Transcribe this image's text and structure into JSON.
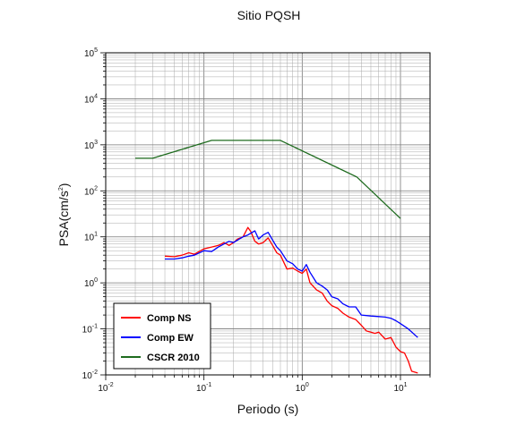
{
  "chart_data": {
    "type": "line",
    "title": "Sitio PQSH",
    "xlabel": "Periodo (s)",
    "ylabel": {
      "base": "PSA(cm/s",
      "sup": "2",
      "tail": ")"
    },
    "xscale": "log",
    "yscale": "log",
    "xlim": [
      0.01,
      20
    ],
    "ylim": [
      0.01,
      100000
    ],
    "grid": true,
    "legend_position": "bottom-left",
    "x_ticks": [
      {
        "base": "10",
        "exp": "-2"
      },
      {
        "base": "10",
        "exp": "-1"
      },
      {
        "base": "10",
        "exp": "0"
      },
      {
        "base": "10",
        "exp": "1"
      }
    ],
    "y_ticks": [
      {
        "base": "10",
        "exp": "-2"
      },
      {
        "base": "10",
        "exp": "-1"
      },
      {
        "base": "10",
        "exp": "0"
      },
      {
        "base": "10",
        "exp": "1"
      },
      {
        "base": "10",
        "exp": "2"
      },
      {
        "base": "10",
        "exp": "3"
      },
      {
        "base": "10",
        "exp": "4"
      },
      {
        "base": "10",
        "exp": "5"
      }
    ],
    "series": [
      {
        "name": "Comp NS",
        "color": "#ff0000",
        "x": [
          0.04,
          0.05,
          0.06,
          0.07,
          0.08,
          0.1,
          0.12,
          0.14,
          0.16,
          0.18,
          0.2,
          0.22,
          0.25,
          0.28,
          0.3,
          0.33,
          0.36,
          0.4,
          0.45,
          0.5,
          0.55,
          0.6,
          0.7,
          0.8,
          0.9,
          1.0,
          1.1,
          1.2,
          1.4,
          1.6,
          1.8,
          2.0,
          2.3,
          2.6,
          3.0,
          3.5,
          4.0,
          4.5,
          5.0,
          5.5,
          6.0,
          7.0,
          8.0,
          9.0,
          10.0,
          11.0,
          12.0,
          13.0,
          15.0
        ],
        "y": [
          3.8,
          3.7,
          4.0,
          4.5,
          4.2,
          5.5,
          6.0,
          6.5,
          7.5,
          6.5,
          7.5,
          9.0,
          10.0,
          16.0,
          13.0,
          8.0,
          7.0,
          7.5,
          9.5,
          6.5,
          4.5,
          4.0,
          2.0,
          2.1,
          1.8,
          1.6,
          2.0,
          1.0,
          0.7,
          0.6,
          0.4,
          0.32,
          0.28,
          0.22,
          0.18,
          0.16,
          0.12,
          0.09,
          0.085,
          0.08,
          0.085,
          0.06,
          0.065,
          0.04,
          0.032,
          0.03,
          0.02,
          0.012,
          0.011
        ]
      },
      {
        "name": "Comp EW",
        "color": "#0000ff",
        "x": [
          0.04,
          0.05,
          0.06,
          0.07,
          0.08,
          0.1,
          0.12,
          0.14,
          0.16,
          0.18,
          0.2,
          0.22,
          0.25,
          0.28,
          0.3,
          0.33,
          0.36,
          0.4,
          0.45,
          0.5,
          0.55,
          0.6,
          0.7,
          0.8,
          0.9,
          1.0,
          1.1,
          1.2,
          1.4,
          1.6,
          1.8,
          2.0,
          2.3,
          2.6,
          3.0,
          3.5,
          4.0,
          5.0,
          6.0,
          7.0,
          8.0,
          9.0,
          10.0,
          12.0,
          15.0
        ],
        "y": [
          3.3,
          3.3,
          3.5,
          3.8,
          4.0,
          5.0,
          4.8,
          6.0,
          7.0,
          8.0,
          7.5,
          8.5,
          10.0,
          11.0,
          12.0,
          13.5,
          9.0,
          11.0,
          12.5,
          8.5,
          6.0,
          5.0,
          3.0,
          2.6,
          2.0,
          1.8,
          2.5,
          1.7,
          1.0,
          0.85,
          0.7,
          0.5,
          0.45,
          0.35,
          0.3,
          0.3,
          0.2,
          0.19,
          0.185,
          0.18,
          0.17,
          0.15,
          0.13,
          0.1,
          0.065
        ]
      },
      {
        "name": "CSCR 2010",
        "color": "#1e6b1e",
        "x": [
          0.02,
          0.03,
          0.12,
          0.6,
          3.6,
          10.0
        ],
        "y": [
          510,
          510,
          1250,
          1250,
          200,
          25
        ]
      }
    ]
  }
}
